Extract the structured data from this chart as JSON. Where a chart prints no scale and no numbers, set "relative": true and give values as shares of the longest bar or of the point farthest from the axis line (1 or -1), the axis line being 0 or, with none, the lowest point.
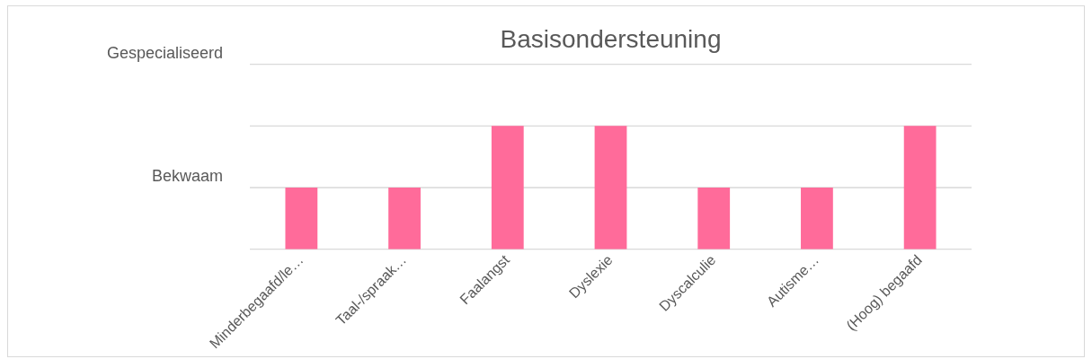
{
  "chart_data": {
    "type": "bar",
    "title": "Basisondersteuning",
    "categories": [
      "Minderbegaafd/le…",
      "Taal-/spraak…",
      "Faalangst",
      "Dyslexie",
      "Dyscalculie",
      "Autisme…",
      "(Hoog) begaafd"
    ],
    "values": [
      0.5,
      0.5,
      1,
      1,
      0.5,
      0.5,
      1
    ],
    "color": "#ff6b9a",
    "relative": true,
    "ref_lines": [
      {
        "axis": "y",
        "value": 0.5,
        "label": "Bekwaam",
        "color": "#d9d9d9"
      },
      {
        "axis": "y",
        "value": 1,
        "label": null,
        "color": "#d9d9d9"
      },
      {
        "axis": "y",
        "value": 1.5,
        "label": "Gespecialiseerd",
        "color": "#d9d9d9"
      }
    ],
    "legend": false
  }
}
